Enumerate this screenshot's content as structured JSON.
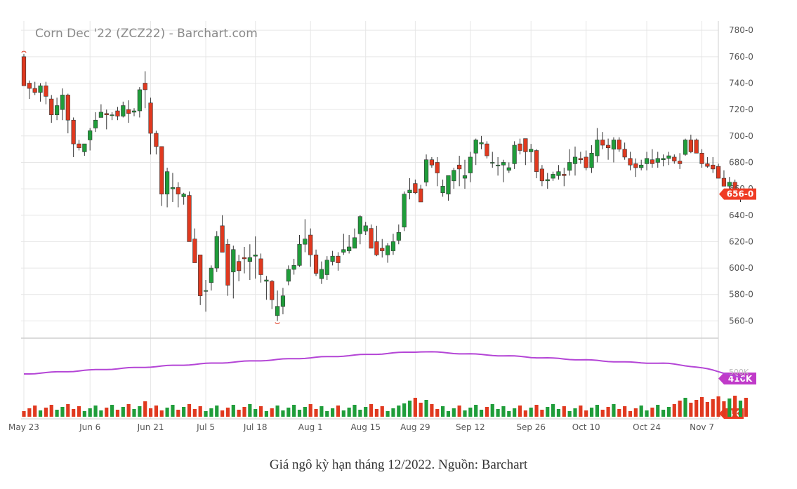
{
  "caption": "Giá ngô kỳ hạn tháng 12/2022. Nguồn: Barchart",
  "chart_data": {
    "type": "candlestick",
    "title": "Corn Dec '22 (ZCZ22) - Barchart.com",
    "y_ticks": [
      "780-0",
      "760-0",
      "740-0",
      "720-0",
      "700-0",
      "680-0",
      "660-0",
      "640-0",
      "620-0",
      "600-0",
      "580-0",
      "560-0"
    ],
    "y_tick_values": [
      780,
      760,
      740,
      720,
      700,
      680,
      660,
      640,
      620,
      600,
      580,
      560
    ],
    "ylim": [
      548,
      787
    ],
    "x_labels": [
      "May 23",
      "Jun 6",
      "Jun 21",
      "Jul 5",
      "Jul 18",
      "Aug 1",
      "Aug 15",
      "Aug 29",
      "Sep 12",
      "Sep 26",
      "Oct 10",
      "Oct 24",
      "Nov 7"
    ],
    "x_label_index": [
      0,
      12,
      23,
      33,
      42,
      52,
      62,
      71,
      81,
      92,
      102,
      113,
      123
    ],
    "last_price_label": "656-0",
    "last_price": 656,
    "ohlc_series": [
      [
        760,
        762,
        740,
        738
      ],
      [
        740,
        742,
        728,
        736
      ],
      [
        736,
        741,
        731,
        733
      ],
      [
        733,
        740,
        726,
        738
      ],
      [
        738,
        741,
        724,
        730
      ],
      [
        728,
        731,
        710,
        716
      ],
      [
        716,
        729,
        712,
        723
      ],
      [
        720,
        736,
        712,
        731
      ],
      [
        731,
        732,
        702,
        712
      ],
      [
        712,
        714,
        684,
        694
      ],
      [
        694,
        697,
        689,
        691
      ],
      [
        688,
        694,
        685,
        694
      ],
      [
        697,
        706,
        689,
        704
      ],
      [
        706,
        718,
        703,
        712
      ],
      [
        714,
        724,
        714,
        718
      ],
      [
        717,
        720,
        705,
        716
      ],
      [
        716,
        718,
        712,
        716
      ],
      [
        719,
        722,
        712,
        715
      ],
      [
        715,
        726,
        714,
        723
      ],
      [
        720,
        727,
        710,
        717
      ],
      [
        718,
        721,
        715,
        719
      ],
      [
        719,
        737,
        714,
        735
      ],
      [
        740,
        749,
        721,
        735
      ],
      [
        725,
        729,
        686,
        702
      ],
      [
        702,
        704,
        686,
        692
      ],
      [
        692,
        692,
        647,
        656
      ],
      [
        656,
        676,
        646,
        673
      ],
      [
        660,
        672,
        650,
        661
      ],
      [
        661,
        665,
        646,
        656
      ],
      [
        654,
        657,
        648,
        656
      ],
      [
        655,
        658,
        632,
        620
      ],
      [
        622,
        630,
        605,
        604
      ],
      [
        610,
        610,
        572,
        579
      ],
      [
        583,
        591,
        567,
        583
      ],
      [
        589,
        602,
        583,
        600
      ],
      [
        600,
        628,
        597,
        624
      ],
      [
        632,
        640,
        624,
        612
      ],
      [
        618,
        622,
        579,
        587
      ],
      [
        597,
        617,
        577,
        614
      ],
      [
        605,
        610,
        590,
        598
      ],
      [
        608,
        616,
        596,
        607
      ],
      [
        605,
        618,
        591,
        608
      ],
      [
        609,
        624,
        592,
        610
      ],
      [
        607,
        611,
        589,
        595
      ],
      [
        590,
        594,
        576,
        591
      ],
      [
        590,
        591,
        569,
        576
      ],
      [
        564,
        583,
        560,
        571
      ],
      [
        571,
        585,
        565,
        579
      ],
      [
        590,
        602,
        587,
        599
      ],
      [
        599,
        607,
        595,
        602
      ],
      [
        602,
        625,
        601,
        618
      ],
      [
        618,
        637,
        612,
        622
      ],
      [
        625,
        630,
        601,
        610
      ],
      [
        610,
        614,
        594,
        596
      ],
      [
        592,
        605,
        588,
        599
      ],
      [
        595,
        609,
        591,
        606
      ],
      [
        605,
        613,
        602,
        609
      ],
      [
        609,
        612,
        598,
        604
      ],
      [
        612,
        626,
        610,
        614
      ],
      [
        613,
        625,
        611,
        616
      ],
      [
        615,
        630,
        615,
        623
      ],
      [
        626,
        640,
        618,
        639
      ],
      [
        628,
        635,
        625,
        632
      ],
      [
        630,
        633,
        616,
        615
      ],
      [
        620,
        632,
        609,
        610
      ],
      [
        615,
        622,
        608,
        613
      ],
      [
        610,
        619,
        604,
        617
      ],
      [
        613,
        626,
        610,
        620
      ],
      [
        621,
        633,
        618,
        627
      ],
      [
        631,
        658,
        628,
        656
      ],
      [
        657,
        668,
        652,
        659
      ],
      [
        664,
        667,
        656,
        657
      ],
      [
        660,
        663,
        655,
        650
      ],
      [
        665,
        686,
        662,
        682
      ],
      [
        682,
        684,
        676,
        678
      ],
      [
        680,
        684,
        662,
        672
      ],
      [
        657,
        667,
        654,
        662
      ],
      [
        656,
        670,
        651,
        670
      ],
      [
        666,
        676,
        660,
        674
      ],
      [
        678,
        685,
        662,
        675
      ],
      [
        668,
        682,
        660,
        670
      ],
      [
        672,
        688,
        665,
        684
      ],
      [
        687,
        698,
        678,
        697
      ],
      [
        694,
        700,
        690,
        695
      ],
      [
        694,
        696,
        683,
        685
      ],
      [
        680,
        688,
        676,
        680
      ],
      [
        678,
        684,
        670,
        678
      ],
      [
        678,
        682,
        665,
        680
      ],
      [
        674,
        680,
        672,
        676
      ],
      [
        679,
        696,
        675,
        693
      ],
      [
        694,
        698,
        686,
        689
      ],
      [
        698,
        697,
        678,
        688
      ],
      [
        688,
        694,
        680,
        690
      ],
      [
        689,
        690,
        668,
        673
      ],
      [
        675,
        678,
        662,
        666
      ],
      [
        666,
        672,
        660,
        667
      ],
      [
        668,
        673,
        666,
        671
      ],
      [
        670,
        678,
        667,
        673
      ],
      [
        671,
        676,
        662,
        670
      ],
      [
        674,
        690,
        670,
        680
      ],
      [
        679,
        692,
        670,
        684
      ],
      [
        683,
        688,
        679,
        682
      ],
      [
        684,
        689,
        674,
        676
      ],
      [
        676,
        693,
        672,
        687
      ],
      [
        685,
        706,
        680,
        697
      ],
      [
        697,
        703,
        690,
        693
      ],
      [
        693,
        698,
        682,
        691
      ],
      [
        690,
        699,
        680,
        697
      ],
      [
        697,
        699,
        688,
        690
      ],
      [
        690,
        695,
        682,
        684
      ],
      [
        683,
        688,
        674,
        678
      ],
      [
        679,
        683,
        669,
        676
      ],
      [
        676,
        682,
        674,
        678
      ],
      [
        679,
        688,
        674,
        683
      ],
      [
        682,
        690,
        676,
        679
      ],
      [
        680,
        688,
        676,
        683
      ],
      [
        682,
        686,
        677,
        683
      ],
      [
        683,
        688,
        678,
        685
      ],
      [
        684,
        686,
        679,
        681
      ],
      [
        681,
        687,
        675,
        679
      ],
      [
        686,
        698,
        685,
        697
      ],
      [
        697,
        701,
        687,
        688
      ],
      [
        697,
        698,
        690,
        687
      ],
      [
        687,
        690,
        676,
        679
      ],
      [
        679,
        684,
        676,
        677
      ],
      [
        678,
        684,
        672,
        675
      ],
      [
        677,
        679,
        670,
        668
      ],
      [
        668,
        674,
        665,
        662
      ],
      [
        662,
        669,
        652,
        665
      ],
      [
        665,
        667,
        653,
        654
      ],
      [
        654,
        659,
        650,
        657
      ],
      [
        657,
        658,
        655,
        656
      ]
    ],
    "oi_label": "416K",
    "volume_label": "4K"
  }
}
